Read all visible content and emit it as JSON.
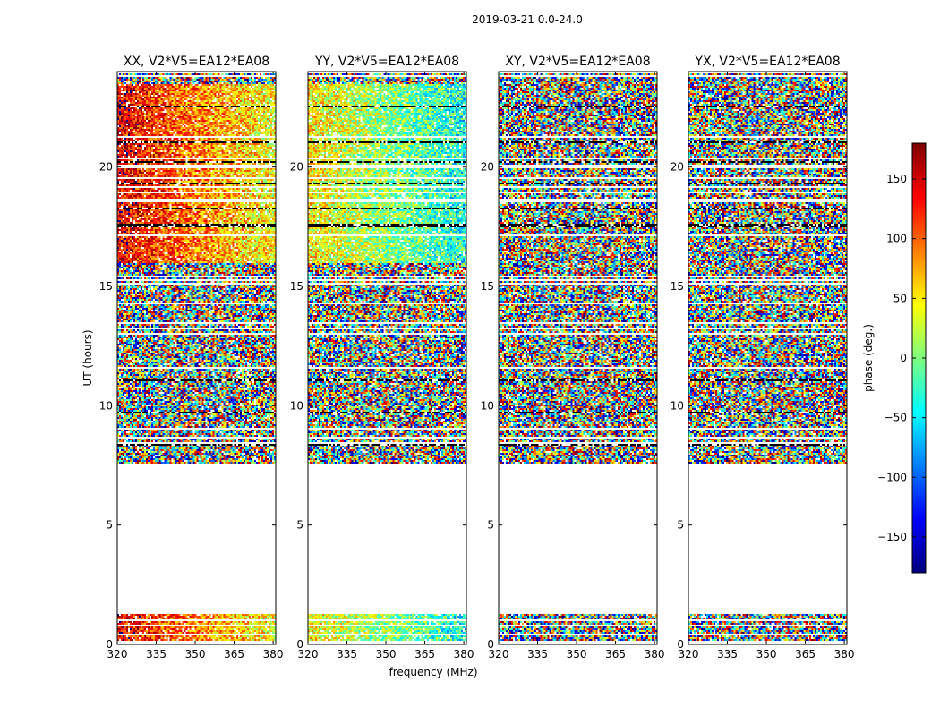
{
  "figure": {
    "suptitle": "2019-03-21 0.0-24.0",
    "ylabel": "UT (hours)",
    "xlabel": "frequency (MHz)"
  },
  "chart_data": {
    "type": "heatmap",
    "x_range": [
      320,
      381
    ],
    "y_range": [
      0,
      24
    ],
    "x_ticks": [
      320,
      335,
      350,
      365,
      380
    ],
    "y_ticks": [
      0,
      5,
      10,
      15,
      20
    ],
    "no_data_ut_ranges": [
      [
        1.25,
        7.55
      ],
      [
        23.9,
        24.0
      ]
    ],
    "panels": [
      {
        "title": "XX, V2*V5=EA12*EA08",
        "pattern": "gradient",
        "phase_start": 140,
        "phase_end": 40
      },
      {
        "title": "YY, V2*V5=EA12*EA08",
        "pattern": "gradient",
        "phase_start": 50,
        "phase_end": -40
      },
      {
        "title": "XY, V2*V5=EA12*EA08",
        "pattern": "noise"
      },
      {
        "title": "YX, V2*V5=EA12*EA08",
        "pattern": "noise"
      }
    ],
    "colorbar": {
      "label": "phase (deg.)",
      "range": [
        -180,
        180
      ],
      "ticks": [
        "150",
        "100",
        "50",
        "0",
        "−50",
        "−100",
        "−150"
      ],
      "tick_values": [
        150,
        100,
        50,
        0,
        -50,
        -100,
        -150
      ],
      "colormap": "jet"
    }
  }
}
